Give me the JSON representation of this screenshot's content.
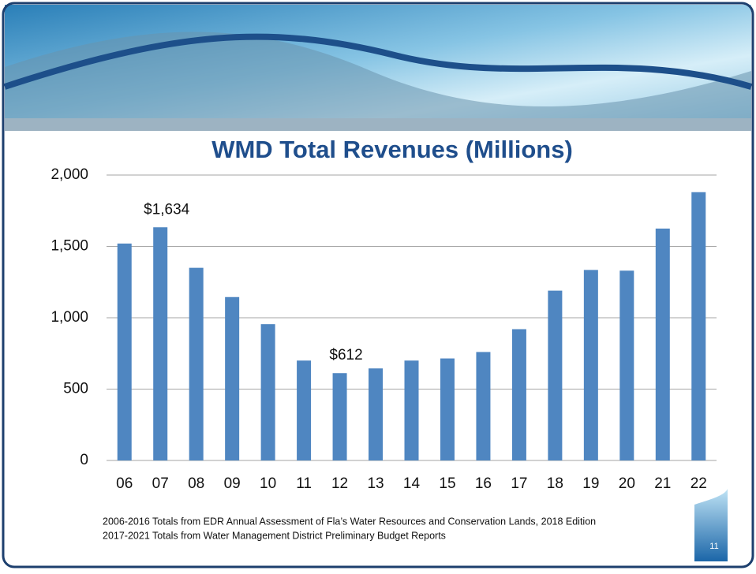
{
  "chart_data": {
    "type": "bar",
    "title": "WMD Total Revenues (Millions)",
    "categories": [
      "06",
      "07",
      "08",
      "09",
      "10",
      "11",
      "12",
      "13",
      "14",
      "15",
      "16",
      "17",
      "18",
      "19",
      "20",
      "21",
      "22"
    ],
    "values": [
      1520,
      1634,
      1350,
      1145,
      955,
      700,
      612,
      645,
      700,
      715,
      760,
      920,
      1190,
      1335,
      1330,
      1625,
      1880
    ],
    "value_labels": [
      null,
      "$1,634",
      null,
      null,
      null,
      null,
      "$612",
      null,
      null,
      null,
      null,
      null,
      null,
      null,
      null,
      null,
      null
    ],
    "color": "#4f86c1",
    "ylim": [
      0,
      2000
    ],
    "yticks": [
      0,
      500,
      {
        "value": 1000,
        "label": "1,000"
      },
      {
        "value": 1500,
        "label": "1,500"
      },
      {
        "value": 2000,
        "label": "2,000"
      }
    ],
    "grid": true
  },
  "footnotes": [
    "2006-2016 Totals from EDR Annual Assessment of Fla’s Water Resources and Conservation Lands,  2018 Edition",
    "2017-2021 Totals from Water Management District Preliminary Budget Reports"
  ],
  "page_number": "11"
}
